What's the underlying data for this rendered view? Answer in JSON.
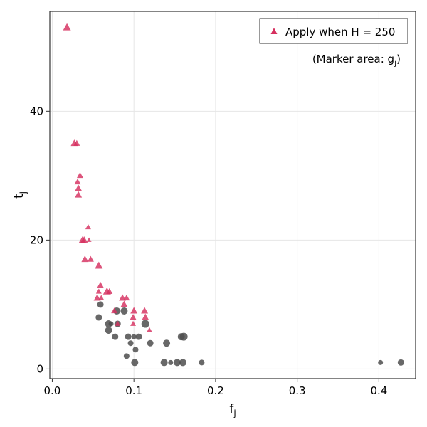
{
  "chart_data": {
    "type": "scatter",
    "title": "",
    "xlabel": "f",
    "xlabel_sub": "j",
    "ylabel": "t",
    "ylabel_sub": "j",
    "xlim": [
      -0.003,
      0.445
    ],
    "ylim": [
      -1.5,
      55.5
    ],
    "x_ticks": [
      0.0,
      0.1,
      0.2,
      0.3,
      0.4
    ],
    "x_tick_labels": [
      "0.0",
      "0.1",
      "0.2",
      "0.3",
      "0.4"
    ],
    "y_ticks": [
      0,
      20,
      40
    ],
    "y_tick_labels": [
      "0",
      "20",
      "40"
    ],
    "grid": true,
    "legend": {
      "placement": "top-right",
      "entries": [
        "Apply when H = 250"
      ],
      "note_prefix": "(Marker area: g",
      "note_sub": "j",
      "note_suffix": ")"
    },
    "series": [
      {
        "name": "Apply when H = 250",
        "marker": "triangle",
        "color": "#d6305f",
        "points": [
          {
            "x": 0.018,
            "y": 53,
            "s": 11
          },
          {
            "x": 0.027,
            "y": 35,
            "s": 10
          },
          {
            "x": 0.03,
            "y": 35,
            "s": 9
          },
          {
            "x": 0.031,
            "y": 29,
            "s": 9
          },
          {
            "x": 0.032,
            "y": 28,
            "s": 10
          },
          {
            "x": 0.032,
            "y": 27,
            "s": 10
          },
          {
            "x": 0.034,
            "y": 30,
            "s": 9
          },
          {
            "x": 0.044,
            "y": 22,
            "s": 8
          },
          {
            "x": 0.045,
            "y": 20,
            "s": 7
          },
          {
            "x": 0.037,
            "y": 20,
            "s": 10
          },
          {
            "x": 0.039,
            "y": 20,
            "s": 10
          },
          {
            "x": 0.04,
            "y": 17,
            "s": 10
          },
          {
            "x": 0.047,
            "y": 17,
            "s": 9
          },
          {
            "x": 0.057,
            "y": 16,
            "s": 11
          },
          {
            "x": 0.059,
            "y": 13,
            "s": 9
          },
          {
            "x": 0.057,
            "y": 12,
            "s": 8
          },
          {
            "x": 0.055,
            "y": 11,
            "s": 10
          },
          {
            "x": 0.06,
            "y": 11,
            "s": 8
          },
          {
            "x": 0.067,
            "y": 12,
            "s": 11
          },
          {
            "x": 0.07,
            "y": 12,
            "s": 9
          },
          {
            "x": 0.076,
            "y": 9,
            "s": 9
          },
          {
            "x": 0.08,
            "y": 7,
            "s": 8
          },
          {
            "x": 0.086,
            "y": 11,
            "s": 10
          },
          {
            "x": 0.091,
            "y": 11,
            "s": 9
          },
          {
            "x": 0.088,
            "y": 10,
            "s": 10
          },
          {
            "x": 0.1,
            "y": 9,
            "s": 10
          },
          {
            "x": 0.099,
            "y": 8,
            "s": 9
          },
          {
            "x": 0.099,
            "y": 7,
            "s": 8
          },
          {
            "x": 0.113,
            "y": 9,
            "s": 10
          },
          {
            "x": 0.114,
            "y": 8,
            "s": 10
          },
          {
            "x": 0.119,
            "y": 6,
            "s": 8
          }
        ]
      },
      {
        "name": "",
        "marker": "circle",
        "color": "#4d4d4d",
        "points": [
          {
            "x": 0.059,
            "y": 10,
            "s": 9
          },
          {
            "x": 0.057,
            "y": 8,
            "s": 9
          },
          {
            "x": 0.069,
            "y": 7,
            "s": 10
          },
          {
            "x": 0.072,
            "y": 7,
            "s": 7
          },
          {
            "x": 0.079,
            "y": 9,
            "s": 10
          },
          {
            "x": 0.08,
            "y": 7,
            "s": 9
          },
          {
            "x": 0.069,
            "y": 6,
            "s": 10
          },
          {
            "x": 0.077,
            "y": 5,
            "s": 9
          },
          {
            "x": 0.088,
            "y": 9,
            "s": 10
          },
          {
            "x": 0.093,
            "y": 5,
            "s": 9
          },
          {
            "x": 0.096,
            "y": 4,
            "s": 8
          },
          {
            "x": 0.1,
            "y": 5,
            "s": 7
          },
          {
            "x": 0.106,
            "y": 5,
            "s": 9
          },
          {
            "x": 0.102,
            "y": 3,
            "s": 8
          },
          {
            "x": 0.091,
            "y": 2,
            "s": 8
          },
          {
            "x": 0.101,
            "y": 1,
            "s": 10
          },
          {
            "x": 0.114,
            "y": 7,
            "s": 11
          },
          {
            "x": 0.12,
            "y": 4,
            "s": 9
          },
          {
            "x": 0.137,
            "y": 1,
            "s": 10
          },
          {
            "x": 0.14,
            "y": 4,
            "s": 10
          },
          {
            "x": 0.145,
            "y": 1,
            "s": 7
          },
          {
            "x": 0.153,
            "y": 1,
            "s": 10
          },
          {
            "x": 0.158,
            "y": 5,
            "s": 10
          },
          {
            "x": 0.161,
            "y": 5,
            "s": 11
          },
          {
            "x": 0.16,
            "y": 1,
            "s": 10
          },
          {
            "x": 0.183,
            "y": 1,
            "s": 8
          },
          {
            "x": 0.402,
            "y": 1,
            "s": 7
          },
          {
            "x": 0.427,
            "y": 1,
            "s": 9
          }
        ]
      }
    ]
  }
}
